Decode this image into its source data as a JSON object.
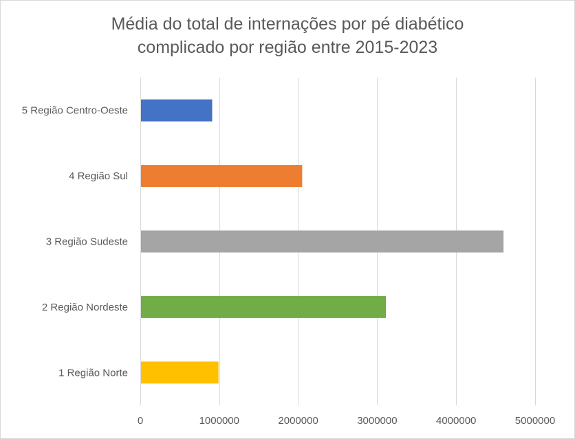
{
  "chart_data": {
    "type": "bar",
    "orientation": "horizontal",
    "title_lines": [
      "Média do total de internações por pé diabético",
      "complicado por região entre 2015-2023"
    ],
    "categories": [
      "5 Região Centro-Oeste",
      "4 Região Sul",
      "3 Região Sudeste",
      "2 Região Nordeste",
      "1 Região Norte"
    ],
    "values": [
      910000,
      2050000,
      4600000,
      3110000,
      990000
    ],
    "colors": [
      "#4472c4",
      "#ed7d31",
      "#a5a5a5",
      "#70ad47",
      "#ffc000"
    ],
    "xlim": [
      0,
      5000000
    ],
    "x_ticks": [
      "0",
      "1000000",
      "2000000",
      "3000000",
      "4000000",
      "5000000"
    ],
    "grid": "vertical",
    "legend": "none"
  }
}
